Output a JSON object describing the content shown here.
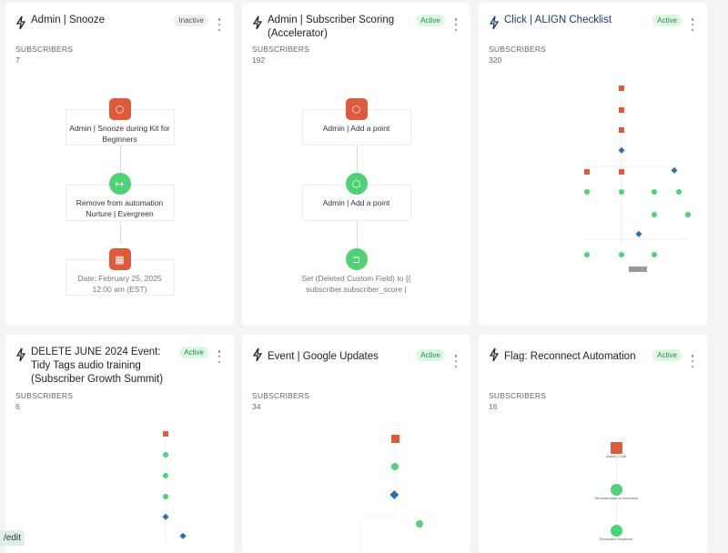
{
  "subscribers_label": "SUBSCRIBERS",
  "colors": {
    "trigger": "#dd5a3a",
    "action": "#4fd175",
    "condition": "#2a6fb0",
    "active_badge": "#dcf7e3",
    "title_link": "#1f3a6b"
  },
  "cards": [
    {
      "title": "Admin | Snooze",
      "status": "Inactive",
      "subscribers": "7",
      "nodes": [
        {
          "label": "Admin | Snooze during Kit for Beginners",
          "icon": "tag-icon",
          "type": "trigger"
        },
        {
          "label": "Remove from automation Nurture | Evergreen",
          "icon": "exit-icon",
          "type": "action"
        },
        {
          "label": "Date: February 25, 2025 12:00 am (EST)",
          "icon": "calendar-icon",
          "type": "trigger"
        }
      ]
    },
    {
      "title": "Admin | Subscriber Scoring (Accelerator)",
      "status": "Active",
      "subscribers": "192",
      "nodes": [
        {
          "label": "Admin | Add a point",
          "icon": "tag-icon",
          "type": "trigger"
        },
        {
          "label": "Admin | Add a point",
          "icon": "tag-icon",
          "type": "action"
        },
        {
          "label": "Set (Deleted Custom Field) to {{ subscriber.subscriber_score |",
          "icon": "field-icon",
          "type": "action"
        }
      ]
    },
    {
      "title": "Click | ALIGN Checklist",
      "status": "Active",
      "subscribers": "320"
    },
    {
      "title": "DELETE JUNE 2024 Event: Tidy Tags audio training (Subscriber Growth Summit)",
      "status": "Active",
      "subscribers": "6"
    },
    {
      "title": "Event | Google Updates",
      "status": "Active",
      "subscribers": "34"
    },
    {
      "title": "Flag: Reconnect Automation",
      "status": "Active",
      "subscribers": "16",
      "nodes": [
        {
          "label": "Admin | Cold",
          "type": "trigger"
        },
        {
          "label": "Set automation to reconnect",
          "type": "action"
        },
        {
          "label": "Reconnect Sequence",
          "type": "action"
        }
      ]
    }
  ],
  "status_bar": "/edit"
}
